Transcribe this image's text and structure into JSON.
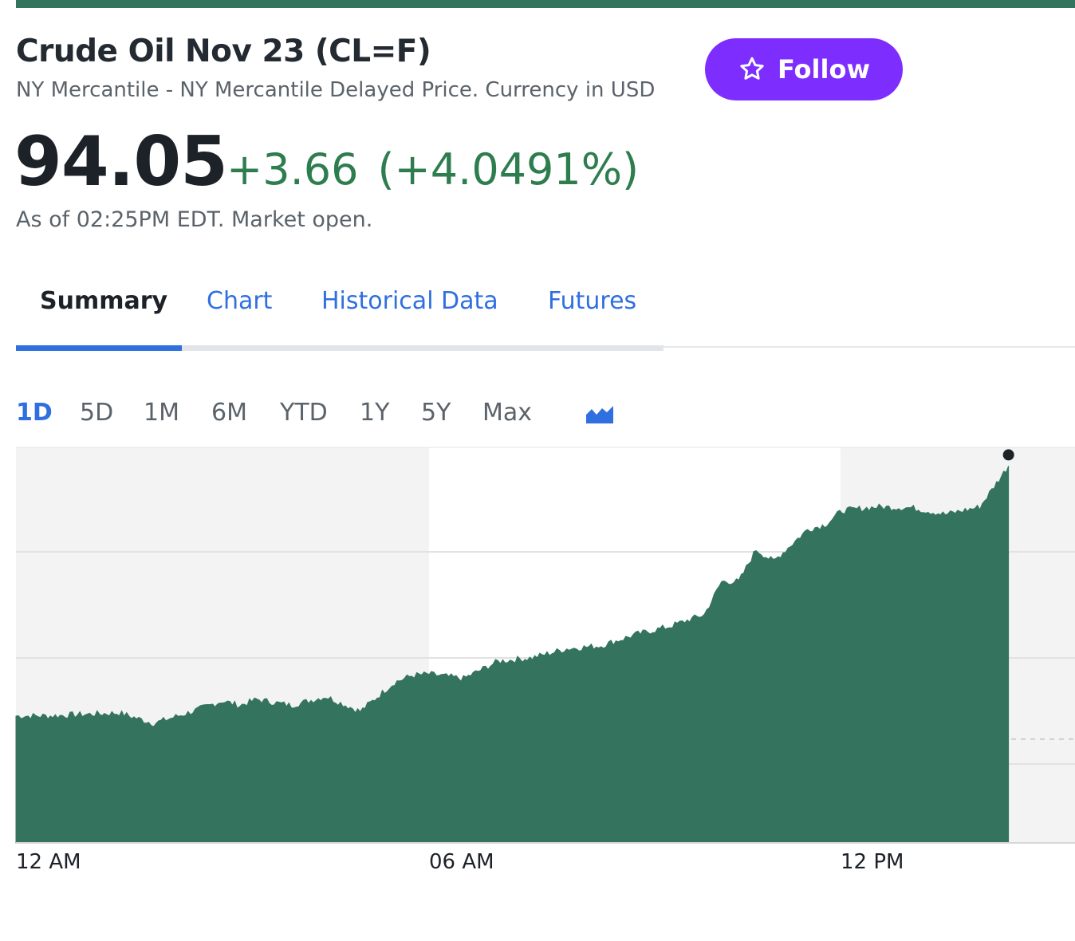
{
  "quote": {
    "title": "Crude Oil Nov 23 (CL=F)",
    "subtitle": "NY Mercantile - NY Mercantile Delayed Price. Currency in USD",
    "follow_label": "Follow",
    "price": "94.05",
    "change": "+3.66",
    "change_pct": "(+4.0491%)",
    "as_of": "As of 02:25PM EDT. Market open."
  },
  "tabs": [
    {
      "label": "Summary",
      "active": true
    },
    {
      "label": "Chart"
    },
    {
      "label": "Historical Data"
    },
    {
      "label": "Futures"
    }
  ],
  "ranges": [
    {
      "label": "1D",
      "active": true
    },
    {
      "label": "5D"
    },
    {
      "label": "1M"
    },
    {
      "label": "6M"
    },
    {
      "label": "YTD"
    },
    {
      "label": "1Y"
    },
    {
      "label": "5Y"
    },
    {
      "label": "Max"
    }
  ],
  "icons": {
    "follow": "star-outline-icon",
    "chart_type": "area-chart-icon"
  },
  "colors": {
    "accent": "#34745f",
    "follow": "#7d2eff",
    "positive": "#2e7d4f",
    "link": "#2f6fe0",
    "offhours_shade": "#f3f3f3",
    "volume": "#cfe3da"
  },
  "chart_data": {
    "type": "area",
    "x_tick_labels": [
      "12 AM",
      "06 AM",
      "12 PM"
    ],
    "series": [
      {
        "x": [
          "00:00",
          "00:30",
          "01:00",
          "01:30",
          "02:00",
          "02:30",
          "03:00",
          "03:15",
          "03:30",
          "04:00",
          "04:30",
          "05:00",
          "05:30",
          "05:45",
          "06:00",
          "06:30",
          "07:00",
          "07:30",
          "08:00",
          "08:30",
          "09:00",
          "09:30",
          "10:00",
          "10:15",
          "10:30",
          "10:45",
          "11:00",
          "11:30",
          "11:45",
          "12:00",
          "12:30",
          "13:00",
          "13:30",
          "14:00",
          "14:25"
        ],
        "values": [
          90.7,
          90.7,
          90.72,
          90.74,
          90.6,
          90.74,
          90.9,
          90.84,
          90.92,
          90.84,
          90.96,
          90.76,
          91.15,
          91.24,
          91.26,
          91.2,
          91.43,
          91.48,
          91.6,
          91.64,
          91.79,
          91.9,
          92.06,
          92.5,
          92.5,
          92.93,
          92.77,
          93.2,
          93.26,
          93.45,
          93.5,
          93.49,
          93.4,
          93.5,
          94.05
        ]
      }
    ],
    "last_value": 94.05,
    "previous_close": 90.39,
    "ylim": [
      89.0,
      94.3
    ],
    "volume_visible": true
  }
}
